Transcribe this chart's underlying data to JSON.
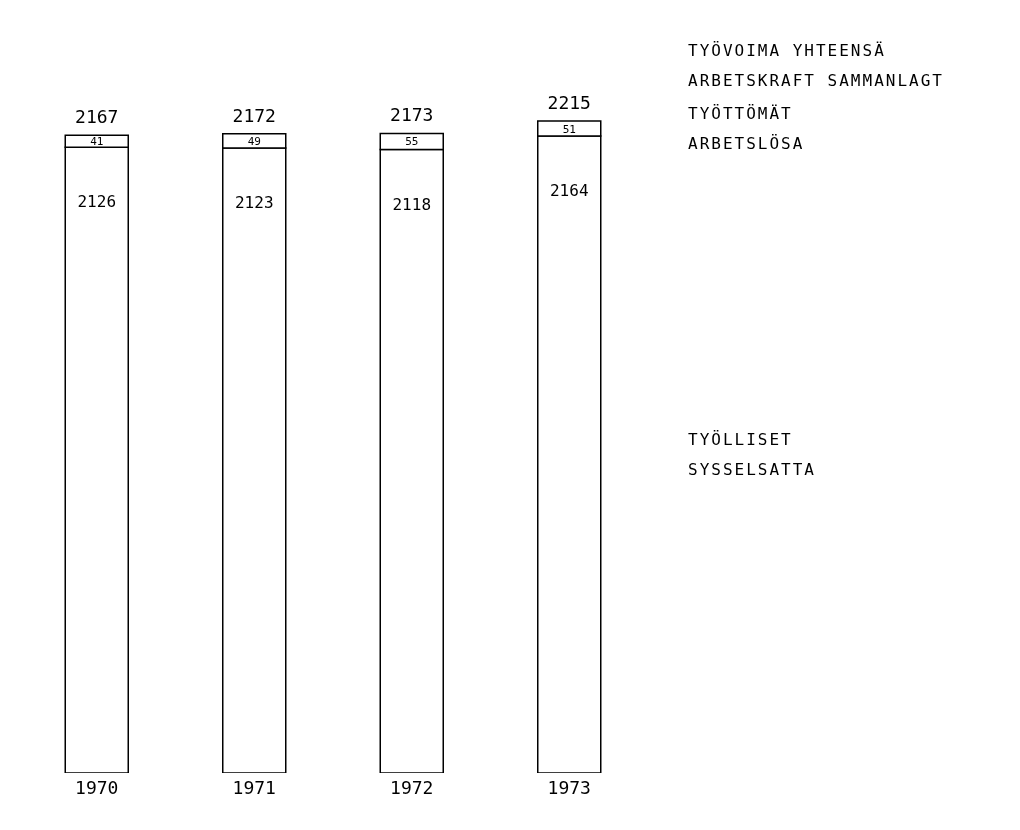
{
  "chart_data": {
    "type": "bar",
    "stacked": true,
    "categories": [
      "1970",
      "1971",
      "1972",
      "1973"
    ],
    "series": [
      {
        "name": "TYÖLLISET\nSYSSELSATTA",
        "color": "#ffffff",
        "values": [
          2126,
          2123,
          2118,
          2164
        ]
      },
      {
        "name": "TYÖTTÖMÄT\nARBETSLÖSA",
        "color": "#ffffff",
        "values": [
          41,
          49,
          55,
          51
        ]
      }
    ],
    "totals": [
      "2167",
      "2172",
      "2173",
      "2215"
    ],
    "data_labels": true,
    "tick_labels": "x",
    "grid": false,
    "legend": false,
    "annotations": [
      "TYÖVOIMA YHTEENSÄ\nARBETSKRAFT SAMMANLAGT"
    ]
  }
}
